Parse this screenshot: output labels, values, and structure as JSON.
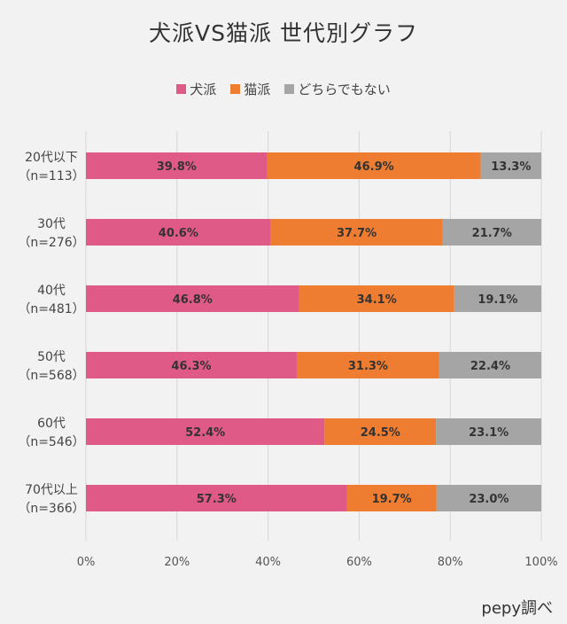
{
  "chart_data": {
    "type": "bar",
    "orientation": "horizontal",
    "stacked": true,
    "title": "犬派VS猫派 世代別グラフ",
    "categories": [
      [
        "20代以下",
        "（n=113）"
      ],
      [
        "30代",
        "（n=276）"
      ],
      [
        "40代",
        "（n=481）"
      ],
      [
        "50代",
        "（n=568）"
      ],
      [
        "60代",
        "（n=546）"
      ],
      [
        "70代以上",
        "（n=366）"
      ]
    ],
    "series": [
      {
        "name": "犬派",
        "color": "#e05a87",
        "values": [
          39.8,
          40.6,
          46.8,
          46.3,
          52.4,
          57.3
        ],
        "labels": [
          "39.8%",
          "40.6%",
          "46.8%",
          "46.3%",
          "52.4%",
          "57.3%"
        ]
      },
      {
        "name": "猫派",
        "color": "#ee7d31",
        "values": [
          46.9,
          37.7,
          34.1,
          31.3,
          24.5,
          19.7
        ],
        "labels": [
          "46.9%",
          "37.7%",
          "34.1%",
          "31.3%",
          "24.5%",
          "19.7%"
        ]
      },
      {
        "name": "どちらでもない",
        "color": "#a5a5a5",
        "values": [
          13.3,
          21.7,
          19.1,
          22.4,
          23.1,
          23.0
        ],
        "labels": [
          "13.3%",
          "21.7%",
          "19.1%",
          "22.4%",
          "23.1%",
          "23.0%"
        ]
      }
    ],
    "xlim": [
      0,
      100
    ],
    "xticks": [
      "0%",
      "20%",
      "40%",
      "60%",
      "80%",
      "100%"
    ],
    "grid": true,
    "legend": "top-center",
    "source": "pepy調べ"
  }
}
